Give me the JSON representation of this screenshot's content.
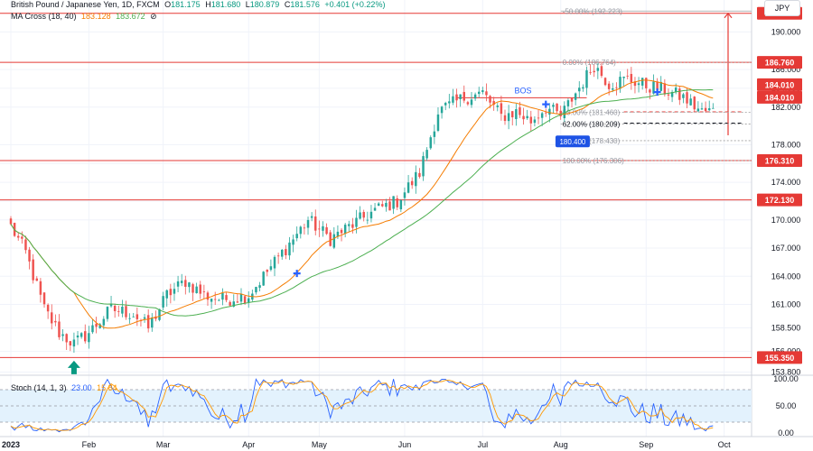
{
  "header": {
    "symbol": "British Pound / Japanese Yen, 1D, FXCM",
    "o_label": "O",
    "open": "181.175",
    "h_label": "H",
    "high": "181.680",
    "l_label": "L",
    "low": "180.879",
    "c_label": "C",
    "close": "181.576",
    "change": "+0.401 (+0.22%)",
    "ma_name": "MA Cross (18, 40)",
    "ma_fast": "183.128",
    "ma_slow": "183.672",
    "stoch_name": "Stoch (14, 1, 3)",
    "stoch_k": "23.00",
    "stoch_d": "15.84"
  },
  "currency_button": "JPY",
  "colors": {
    "up": "#26a69a",
    "down": "#ef5350",
    "ma_fast": "#f57c00",
    "ma_slow": "#4caf50",
    "level": "#e53935",
    "fib": "#9e9e9e",
    "stoch_k": "#2962ff",
    "stoch_d": "#ff9800",
    "stoch_band": "#e3f2fd",
    "marker": "#2962ff",
    "arrow": "#089981",
    "tag": "#1e53e5"
  },
  "chart_data": {
    "type": "candlestick",
    "instrument": "GBP/JPY",
    "timeframe": "1D",
    "ylim": [
      153.85,
      193.4
    ],
    "y_ticks": [
      153.8,
      156.0,
      158.5,
      161.0,
      164.0,
      167.0,
      170.0,
      172.0,
      174.0,
      176.0,
      178.0,
      182.0,
      184.0,
      186.0,
      190.0
    ],
    "x_ticks": [
      "2023",
      "Feb",
      "Mar",
      "Apr",
      "May",
      "Jun",
      "Jul",
      "Aug",
      "Sep",
      "Oct"
    ],
    "horizontal_levels": [
      {
        "label": "191.990",
        "value": 191.99
      },
      {
        "label": "186.760",
        "value": 186.76
      },
      {
        "label": "184.010",
        "value": 184.01
      },
      {
        "label": "184.010",
        "value": 184.01
      },
      {
        "label": "176.310",
        "value": 176.31
      },
      {
        "label": "172.130",
        "value": 172.13
      },
      {
        "label": "155.350",
        "value": 155.35
      }
    ],
    "fibonacci": [
      {
        "label": "-50.00% (192.223)",
        "value": 192.223
      },
      {
        "label": "0.00% (186.764)",
        "value": 186.764
      },
      {
        "label": "50.00% (181.460)",
        "value": 181.46
      },
      {
        "label": "62.00% (180.209)",
        "value": 180.209
      },
      {
        "label": "79.00% (178.430)",
        "value": 178.43
      },
      {
        "label": "100.00% (176.306)",
        "value": 176.306
      }
    ],
    "price_tag": "180.400",
    "bos_label": "BOS",
    "bos_level": 183.0,
    "sessions": 195,
    "month_start_index": {
      "2023": 0,
      "Feb": 21,
      "Mar": 41,
      "Apr": 64,
      "May": 83,
      "Jun": 106,
      "Jul": 127,
      "Aug": 148,
      "Sep": 171,
      "Oct": 192
    },
    "key_closes": [
      {
        "i": 0,
        "close": 169.3
      },
      {
        "i": 4,
        "close": 166.5
      },
      {
        "i": 9,
        "close": 160.5
      },
      {
        "i": 13,
        "close": 158.0
      },
      {
        "i": 17,
        "close": 156.8
      },
      {
        "i": 21,
        "close": 158.0
      },
      {
        "i": 27,
        "close": 160.5
      },
      {
        "i": 33,
        "close": 160.0
      },
      {
        "i": 37,
        "close": 158.5
      },
      {
        "i": 42,
        "close": 162.0
      },
      {
        "i": 47,
        "close": 163.5
      },
      {
        "i": 52,
        "close": 162.0
      },
      {
        "i": 57,
        "close": 161.5
      },
      {
        "i": 64,
        "close": 162.0
      },
      {
        "i": 70,
        "close": 165.0
      },
      {
        "i": 75,
        "close": 167.5
      },
      {
        "i": 80,
        "close": 170.0
      },
      {
        "i": 86,
        "close": 168.0
      },
      {
        "i": 92,
        "close": 169.5
      },
      {
        "i": 98,
        "close": 171.0
      },
      {
        "i": 104,
        "close": 172.0
      },
      {
        "i": 110,
        "close": 175.0
      },
      {
        "i": 115,
        "close": 181.5
      },
      {
        "i": 122,
        "close": 183.0
      },
      {
        "i": 127,
        "close": 183.5
      },
      {
        "i": 132,
        "close": 181.0
      },
      {
        "i": 136,
        "close": 181.5
      },
      {
        "i": 140,
        "close": 180.5
      },
      {
        "i": 144,
        "close": 182.0
      },
      {
        "i": 148,
        "close": 181.0
      },
      {
        "i": 152,
        "close": 183.5
      },
      {
        "i": 157,
        "close": 186.5
      },
      {
        "i": 161,
        "close": 184.5
      },
      {
        "i": 166,
        "close": 185.0
      },
      {
        "i": 171,
        "close": 184.3
      },
      {
        "i": 176,
        "close": 183.8
      },
      {
        "i": 181,
        "close": 183.0
      },
      {
        "i": 186,
        "close": 181.5
      },
      {
        "i": 189,
        "close": 181.6
      }
    ],
    "stochastic": {
      "ylim": [
        0,
        100
      ],
      "y_ticks": [
        "100.00",
        "50.00",
        "0.00"
      ],
      "bands": [
        80,
        20
      ],
      "k_last": 23.0,
      "d_last": 15.84
    }
  }
}
